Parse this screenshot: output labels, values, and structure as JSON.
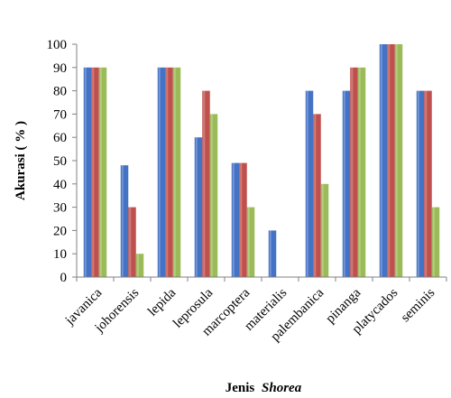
{
  "chart_data": {
    "type": "bar",
    "title": "",
    "xlabel_prefix": "Jenis",
    "xlabel_genus": "Shorea",
    "ylabel": "Akurasi ( % )",
    "ylim": [
      0,
      100
    ],
    "yticks": [
      0,
      10,
      20,
      30,
      40,
      50,
      60,
      70,
      80,
      90,
      100
    ],
    "ytick_labels": [
      "0",
      "10",
      "20",
      "30",
      "40",
      "50",
      "60",
      "70",
      "80",
      "90",
      "100"
    ],
    "grid": false,
    "legend": "none",
    "categories": [
      "javanica",
      "johorensis",
      "lepida",
      "leprosula",
      "marcoptera",
      "materialis",
      "palembanica",
      "pinanga",
      "platycados",
      "seminis"
    ],
    "series": [
      {
        "color": "#4472C4",
        "values": [
          90,
          48,
          90,
          60,
          49,
          20,
          80,
          80,
          100,
          80
        ]
      },
      {
        "color": "#C0504D",
        "values": [
          90,
          30,
          90,
          80,
          49,
          0,
          70,
          90,
          100,
          80
        ]
      },
      {
        "color": "#9BBB59",
        "values": [
          90,
          10,
          90,
          70,
          30,
          0,
          40,
          90,
          100,
          30
        ]
      }
    ]
  }
}
